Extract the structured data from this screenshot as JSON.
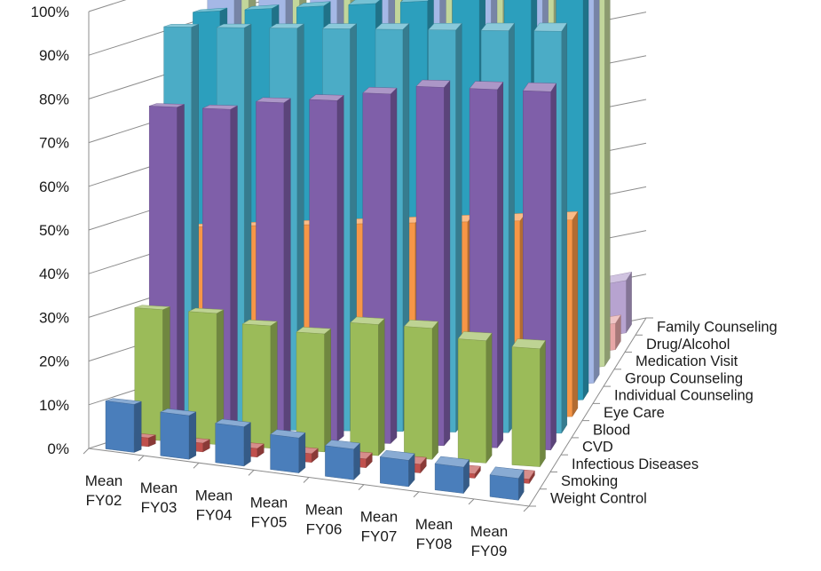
{
  "chart_data": {
    "type": "bar",
    "subtype": "3d-column",
    "title": "",
    "xlabel": "",
    "ylabel": "",
    "ylim": [
      0,
      100
    ],
    "y_tick_labels": [
      "0%",
      "10%",
      "20%",
      "30%",
      "40%",
      "50%",
      "60%",
      "70%",
      "80%",
      "90%",
      "100%"
    ],
    "grid": true,
    "categories": [
      [
        "Mean",
        "FY02"
      ],
      [
        "Mean",
        "FY03"
      ],
      [
        "Mean",
        "FY04"
      ],
      [
        "Mean",
        "FY05"
      ],
      [
        "Mean",
        "FY06"
      ],
      [
        "Mean",
        "FY07"
      ],
      [
        "Mean",
        "FY08"
      ],
      [
        "Mean",
        "FY09"
      ]
    ],
    "series": [
      {
        "name": "Weight Control",
        "color": "#4a7ebb",
        "values": [
          11,
          10,
          9,
          8,
          7,
          6,
          6,
          5
        ]
      },
      {
        "name": "Smoking",
        "color": "#c0504d",
        "values": [
          2,
          2,
          2,
          2,
          2,
          2,
          1,
          1
        ]
      },
      {
        "name": "Infectious Diseases",
        "color": "#9bbb59",
        "values": [
          30,
          30,
          28,
          27,
          30,
          30,
          28,
          27
        ]
      },
      {
        "name": "CVD",
        "color": "#7f5fa9",
        "values": [
          75,
          75,
          77,
          78,
          80,
          82,
          82,
          82
        ]
      },
      {
        "name": "Blood",
        "color": "#4bacc6",
        "values": [
          92,
          92,
          92,
          92,
          92,
          92,
          92,
          92
        ]
      },
      {
        "name": "Eye Care",
        "color": "#f79646",
        "values": [
          45,
          45,
          45,
          45,
          45,
          45,
          45,
          45
        ]
      },
      {
        "name": "Individual Counseling",
        "color": "#2c9fbd",
        "values": [
          93,
          93,
          93,
          93,
          93,
          93,
          93,
          93
        ]
      },
      {
        "name": "Group Counseling",
        "color": "#a5b8e6",
        "values": [
          98,
          96,
          96,
          96,
          96,
          94,
          94,
          94
        ]
      },
      {
        "name": "Medication Visit",
        "color": "#c2d69b",
        "values": [
          99,
          98,
          98,
          97,
          96,
          96,
          96,
          96
        ]
      },
      {
        "name": "Drug/Alcohol",
        "color": "#e7a6a6",
        "values": [
          6,
          6,
          6,
          6,
          6,
          6,
          6,
          6
        ]
      },
      {
        "name": "Family Counseling",
        "color": "#b7a3d0",
        "values": [
          12,
          12,
          12,
          12,
          12,
          12,
          12,
          12
        ]
      }
    ]
  }
}
